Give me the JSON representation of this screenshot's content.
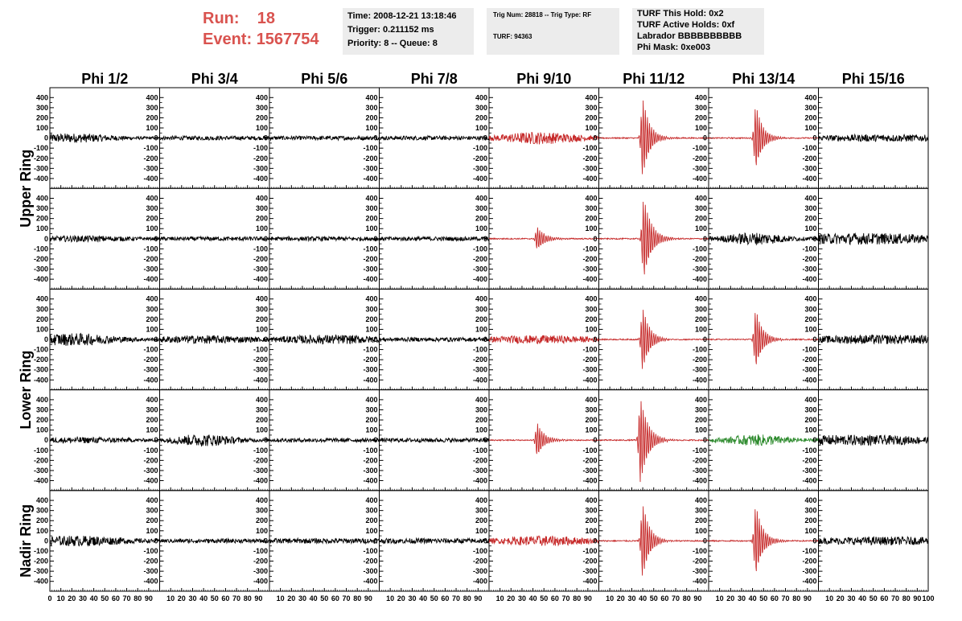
{
  "header": {
    "run_label": "Run:",
    "run_value": "18",
    "event_label": "Event:",
    "event_value": "1567754",
    "time": "Time: 2008-12-21 13:18:46",
    "trigger": "Trigger: 0.211152 ms",
    "priority": "Priority: 8 -- Queue: 8",
    "trig_num": "Trig Num: 28818 -- Trig Type: RF",
    "turf": "TURF: 94363",
    "turf_hold": "TURF This Hold: 0x2",
    "turf_active": "TURF Active Holds: 0xf",
    "labrador": "Labrador BBBBBBBBBB",
    "phi_mask": "Phi Mask: 0xe003"
  },
  "colors": {
    "normal": "#000000",
    "triggered": "#c62828",
    "masked": "#2e8b2e",
    "run_text": "#d9534f"
  },
  "chart_data": {
    "type": "line",
    "columns": [
      "Phi 1/2",
      "Phi 3/4",
      "Phi 5/6",
      "Phi 7/8",
      "Phi 9/10",
      "Phi 11/12",
      "Phi 13/14",
      "Phi 15/16"
    ],
    "rows": [
      "Upper Ring",
      "Upper Ring",
      "Lower Ring",
      "Lower Ring",
      "Nadir Ring"
    ],
    "row_labels": [
      {
        "text": "Upper Ring",
        "rows": [
          0,
          1
        ]
      },
      {
        "text": "Lower Ring",
        "rows": [
          2,
          3
        ]
      },
      {
        "text": "Nadir Ring",
        "rows": [
          4,
          4
        ]
      }
    ],
    "ylim": [
      -450,
      450
    ],
    "yticks": [
      400,
      300,
      200,
      100,
      0,
      -100,
      -200,
      -300,
      -400
    ],
    "xlim": [
      0,
      100
    ],
    "xticks": [
      0,
      10,
      20,
      30,
      40,
      50,
      60,
      70,
      80,
      90,
      100
    ],
    "grid": false,
    "waveforms": [
      [
        {
          "color": "normal",
          "amp": 45,
          "center": 20,
          "width": 60,
          "kind": "noise"
        },
        {
          "color": "normal",
          "amp": 20,
          "center": 50,
          "width": 200,
          "kind": "noise"
        },
        {
          "color": "normal",
          "amp": 20,
          "center": 50,
          "width": 200,
          "kind": "noise"
        },
        {
          "color": "normal",
          "amp": 20,
          "center": 50,
          "width": 200,
          "kind": "noise"
        },
        {
          "color": "triggered",
          "amp": 60,
          "center": 45,
          "width": 50,
          "kind": "noise"
        },
        {
          "color": "triggered",
          "amp": 400,
          "center": 40,
          "width": 20,
          "kind": "pulse"
        },
        {
          "color": "triggered",
          "amp": 330,
          "center": 43,
          "width": 20,
          "kind": "pulse"
        },
        {
          "color": "normal",
          "amp": 35,
          "center": 60,
          "width": 120,
          "kind": "noise"
        }
      ],
      [
        {
          "color": "normal",
          "amp": 30,
          "center": 30,
          "width": 80,
          "kind": "noise"
        },
        {
          "color": "normal",
          "amp": 20,
          "center": 50,
          "width": 200,
          "kind": "noise"
        },
        {
          "color": "normal",
          "amp": 20,
          "center": 50,
          "width": 200,
          "kind": "noise"
        },
        {
          "color": "normal",
          "amp": 20,
          "center": 50,
          "width": 200,
          "kind": "noise"
        },
        {
          "color": "triggered",
          "amp": 120,
          "center": 44,
          "width": 22,
          "kind": "pulse"
        },
        {
          "color": "triggered",
          "amp": 420,
          "center": 41,
          "width": 22,
          "kind": "pulse"
        },
        {
          "color": "normal",
          "amp": 60,
          "center": 42,
          "width": 40,
          "kind": "noise"
        },
        {
          "color": "normal",
          "amp": 55,
          "center": 40,
          "width": 120,
          "kind": "noise"
        }
      ],
      [
        {
          "color": "normal",
          "amp": 60,
          "center": 20,
          "width": 60,
          "kind": "noise"
        },
        {
          "color": "normal",
          "amp": 40,
          "center": 40,
          "width": 80,
          "kind": "noise"
        },
        {
          "color": "normal",
          "amp": 45,
          "center": 55,
          "width": 80,
          "kind": "noise"
        },
        {
          "color": "normal",
          "amp": 20,
          "center": 50,
          "width": 200,
          "kind": "noise"
        },
        {
          "color": "triggered",
          "amp": 40,
          "center": 45,
          "width": 80,
          "kind": "noise"
        },
        {
          "color": "triggered",
          "amp": 320,
          "center": 40,
          "width": 20,
          "kind": "pulse"
        },
        {
          "color": "triggered",
          "amp": 300,
          "center": 43,
          "width": 20,
          "kind": "pulse"
        },
        {
          "color": "normal",
          "amp": 45,
          "center": 60,
          "width": 120,
          "kind": "noise"
        }
      ],
      [
        {
          "color": "normal",
          "amp": 30,
          "center": 30,
          "width": 80,
          "kind": "noise"
        },
        {
          "color": "normal",
          "amp": 60,
          "center": 40,
          "width": 40,
          "kind": "noise"
        },
        {
          "color": "normal",
          "amp": 20,
          "center": 50,
          "width": 200,
          "kind": "noise"
        },
        {
          "color": "normal",
          "amp": 20,
          "center": 50,
          "width": 200,
          "kind": "noise"
        },
        {
          "color": "triggered",
          "amp": 170,
          "center": 44,
          "width": 20,
          "kind": "pulse"
        },
        {
          "color": "triggered",
          "amp": 440,
          "center": 38,
          "width": 22,
          "kind": "pulse"
        },
        {
          "color": "masked",
          "amp": 55,
          "center": 45,
          "width": 40,
          "kind": "noise"
        },
        {
          "color": "normal",
          "amp": 50,
          "center": 30,
          "width": 120,
          "kind": "noise"
        }
      ],
      [
        {
          "color": "normal",
          "amp": 50,
          "center": 25,
          "width": 70,
          "kind": "noise"
        },
        {
          "color": "normal",
          "amp": 20,
          "center": 50,
          "width": 200,
          "kind": "noise"
        },
        {
          "color": "normal",
          "amp": 25,
          "center": 50,
          "width": 200,
          "kind": "noise"
        },
        {
          "color": "normal",
          "amp": 25,
          "center": 50,
          "width": 200,
          "kind": "noise"
        },
        {
          "color": "triggered",
          "amp": 50,
          "center": 50,
          "width": 60,
          "kind": "noise"
        },
        {
          "color": "triggered",
          "amp": 380,
          "center": 40,
          "width": 20,
          "kind": "pulse"
        },
        {
          "color": "triggered",
          "amp": 360,
          "center": 43,
          "width": 20,
          "kind": "pulse"
        },
        {
          "color": "normal",
          "amp": 40,
          "center": 60,
          "width": 120,
          "kind": "noise"
        }
      ]
    ]
  }
}
